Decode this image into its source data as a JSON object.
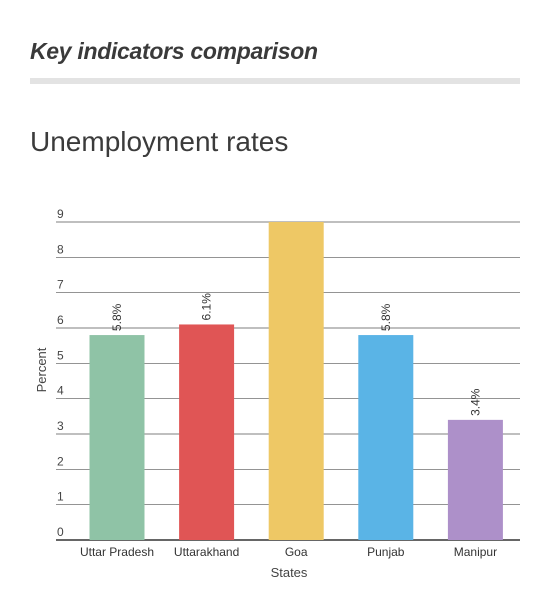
{
  "section": {
    "title": "Key indicators comparison"
  },
  "colors": {
    "grid": "#555555",
    "axis_text": "#444444",
    "series": [
      "#8fc3a6",
      "#e05555",
      "#eec865",
      "#5ab4e6",
      "#ad90c9"
    ]
  },
  "chart_data": {
    "type": "bar",
    "title": "Unemployment rates",
    "xlabel": "States",
    "ylabel": "Percent",
    "categories": [
      "Uttar Pradesh",
      "Uttarakhand",
      "Goa",
      "Punjab",
      "Manipur"
    ],
    "values": [
      5.8,
      6.1,
      9.0,
      5.8,
      3.4
    ],
    "data_labels": [
      "5.8%",
      "6.1%",
      "",
      "5.8%",
      "3.4%"
    ],
    "ylim": [
      0,
      9
    ],
    "yticks": [
      0,
      1,
      2,
      3,
      4,
      5,
      6,
      7,
      8,
      9
    ],
    "grid": true,
    "legend": "none"
  }
}
